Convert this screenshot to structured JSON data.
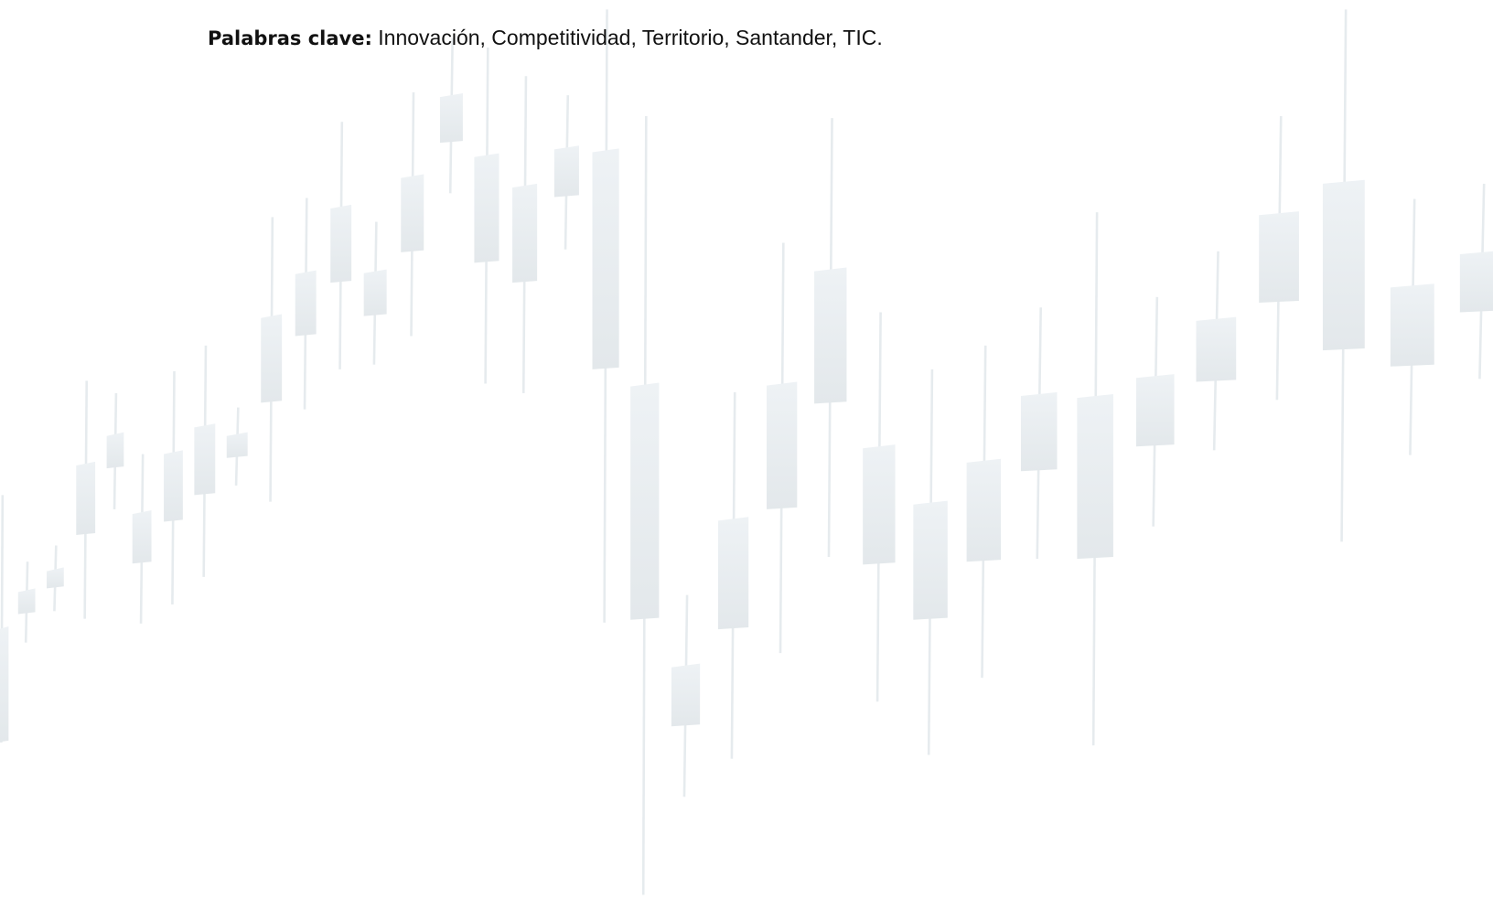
{
  "keywords": {
    "label": "Palabras clave:",
    "text": "Innovación, Competitividad, Territorio, Santander, TIC."
  }
}
